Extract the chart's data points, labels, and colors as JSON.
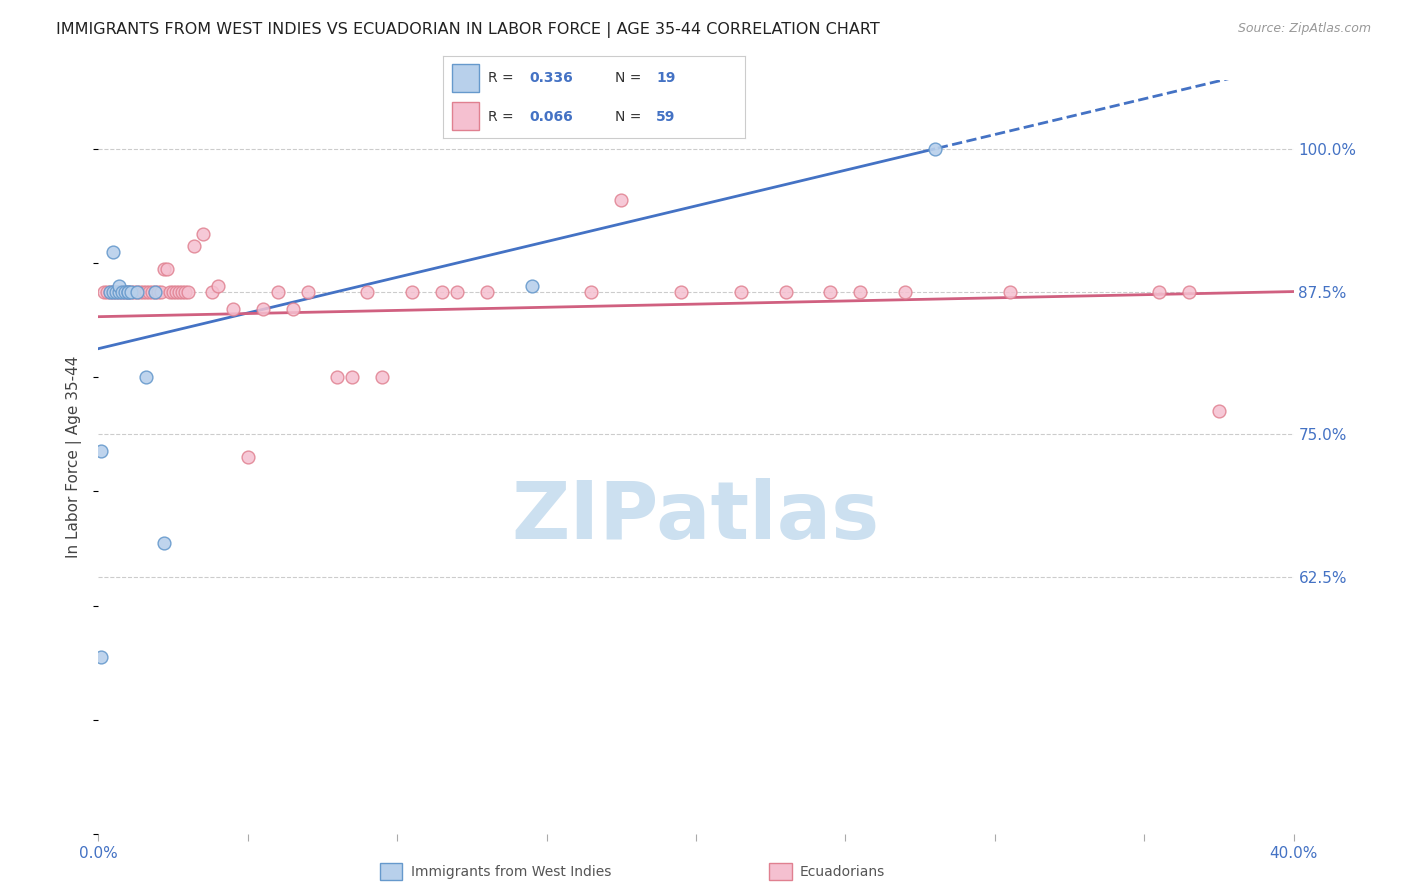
{
  "title": "IMMIGRANTS FROM WEST INDIES VS ECUADORIAN IN LABOR FORCE | AGE 35-44 CORRELATION CHART",
  "source": "Source: ZipAtlas.com",
  "ylabel": "In Labor Force | Age 35-44",
  "x_min": 0.0,
  "x_max": 0.4,
  "y_min": 0.4,
  "y_max": 1.06,
  "x_ticks": [
    0.0,
    0.05,
    0.1,
    0.15,
    0.2,
    0.25,
    0.3,
    0.35,
    0.4
  ],
  "x_tick_labels": [
    "0.0%",
    "",
    "",
    "",
    "",
    "",
    "",
    "",
    "40.0%"
  ],
  "y_tick_vals_right": [
    1.0,
    0.875,
    0.75,
    0.625
  ],
  "y_tick_labels_right": [
    "100.0%",
    "87.5%",
    "75.0%",
    "62.5%"
  ],
  "R_blue": "0.336",
  "N_blue": "19",
  "R_pink": "0.066",
  "N_pink": "59",
  "color_blue_fill": "#b8d0eb",
  "color_blue_edge": "#6699cc",
  "color_pink_fill": "#f5c0d0",
  "color_pink_edge": "#e08090",
  "color_line_blue": "#4472c4",
  "color_line_pink": "#d06080",
  "color_text_blue": "#4472c4",
  "color_grid": "#cccccc",
  "background_color": "#ffffff",
  "watermark_text": "ZIPatlas",
  "watermark_color": "#cce0f0",
  "blue_x": [
    0.001,
    0.004,
    0.005,
    0.005,
    0.006,
    0.007,
    0.007,
    0.008,
    0.009,
    0.01,
    0.01,
    0.011,
    0.013,
    0.016,
    0.019,
    0.022,
    0.145,
    0.28,
    0.001
  ],
  "blue_y": [
    0.735,
    0.875,
    0.875,
    0.91,
    0.875,
    0.875,
    0.88,
    0.875,
    0.875,
    0.875,
    0.875,
    0.875,
    0.875,
    0.8,
    0.875,
    0.655,
    0.88,
    1.0,
    0.555
  ],
  "pink_x": [
    0.002,
    0.003,
    0.004,
    0.005,
    0.006,
    0.007,
    0.008,
    0.009,
    0.01,
    0.011,
    0.012,
    0.013,
    0.014,
    0.015,
    0.016,
    0.017,
    0.018,
    0.019,
    0.02,
    0.021,
    0.022,
    0.023,
    0.024,
    0.025,
    0.026,
    0.027,
    0.028,
    0.029,
    0.03,
    0.032,
    0.035,
    0.038,
    0.04,
    0.045,
    0.05,
    0.055,
    0.06,
    0.065,
    0.07,
    0.08,
    0.085,
    0.09,
    0.105,
    0.115,
    0.165,
    0.175,
    0.195,
    0.215,
    0.23,
    0.245,
    0.255,
    0.27,
    0.305,
    0.355,
    0.365,
    0.375,
    0.12,
    0.13,
    0.095
  ],
  "pink_y": [
    0.875,
    0.875,
    0.875,
    0.875,
    0.875,
    0.875,
    0.875,
    0.875,
    0.875,
    0.875,
    0.875,
    0.875,
    0.875,
    0.875,
    0.875,
    0.875,
    0.875,
    0.875,
    0.875,
    0.875,
    0.895,
    0.895,
    0.875,
    0.875,
    0.875,
    0.875,
    0.875,
    0.875,
    0.875,
    0.915,
    0.925,
    0.875,
    0.88,
    0.86,
    0.73,
    0.86,
    0.875,
    0.86,
    0.875,
    0.8,
    0.8,
    0.875,
    0.875,
    0.875,
    0.875,
    0.955,
    0.875,
    0.875,
    0.875,
    0.875,
    0.875,
    0.875,
    0.875,
    0.875,
    0.875,
    0.77,
    0.875,
    0.875,
    0.8
  ]
}
